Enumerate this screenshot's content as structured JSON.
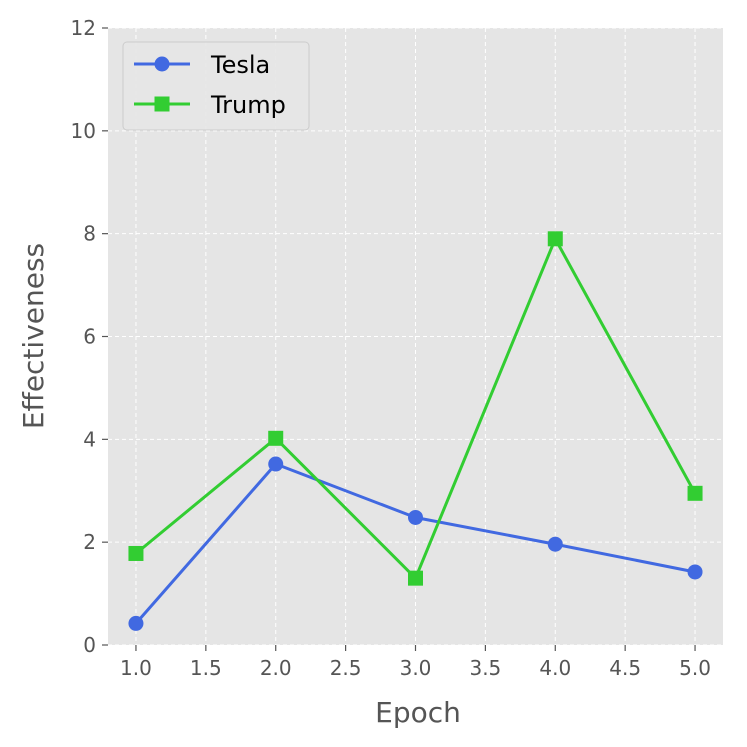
{
  "chart_data": {
    "type": "line",
    "title": "",
    "xlabel": "Epoch",
    "ylabel": "Effectiveness",
    "xlim": [
      0.8,
      5.2
    ],
    "ylim": [
      0,
      12
    ],
    "xticks": [
      "1.0",
      "1.5",
      "2.0",
      "2.5",
      "3.0",
      "3.5",
      "4.0",
      "4.5",
      "5.0"
    ],
    "yticks": [
      "0",
      "2",
      "4",
      "6",
      "8",
      "10",
      "12"
    ],
    "grid": true,
    "legend_position": "top-left",
    "series": [
      {
        "name": "Tesla",
        "color": "#4169E1",
        "marker": "circle",
        "x": [
          1,
          2,
          3,
          4,
          5
        ],
        "y": [
          0.42,
          3.52,
          2.48,
          1.96,
          1.42
        ]
      },
      {
        "name": "Trump",
        "color": "#32CD32",
        "marker": "square",
        "x": [
          1,
          2,
          3,
          4,
          5
        ],
        "y": [
          1.78,
          4.02,
          1.3,
          7.9,
          2.95
        ]
      }
    ]
  }
}
